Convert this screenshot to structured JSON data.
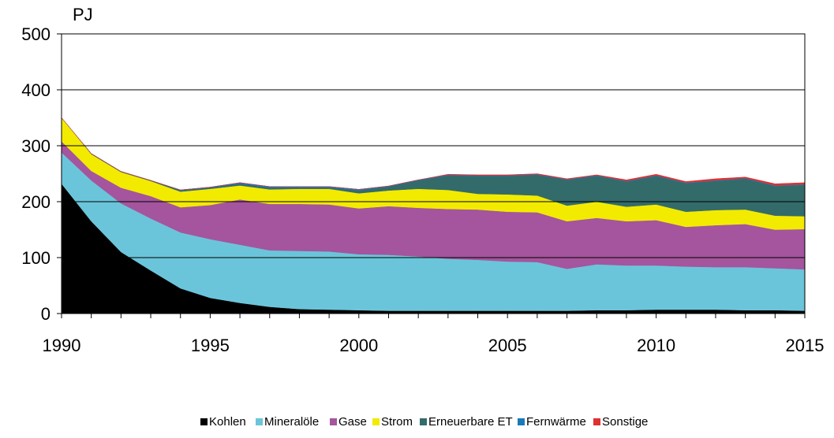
{
  "chart_data": {
    "type": "stacked-area",
    "y_label": "PJ",
    "x": [
      1990,
      1991,
      1992,
      1993,
      1994,
      1995,
      1996,
      1997,
      1998,
      1999,
      2000,
      2001,
      2002,
      2003,
      2004,
      2005,
      2006,
      2007,
      2008,
      2009,
      2010,
      2011,
      2012,
      2013,
      2014,
      2015
    ],
    "xlim": [
      1990,
      2015
    ],
    "xticks": [
      1990,
      1995,
      2000,
      2005,
      2010,
      2015
    ],
    "ylim": [
      0,
      500
    ],
    "yticks": [
      0,
      100,
      200,
      300,
      400,
      500
    ],
    "grid": true,
    "legend": "bottom",
    "series": [
      {
        "name": "Kohlen",
        "color": "#000000",
        "values": [
          232,
          165,
          110,
          77,
          45,
          28,
          19,
          12,
          8,
          7,
          6,
          5,
          5,
          5,
          5,
          5,
          5,
          5,
          6,
          6,
          7,
          7,
          7,
          6,
          6,
          5
        ]
      },
      {
        "name": "Mineralöle",
        "color": "#6bc5da",
        "values": [
          56,
          73,
          87,
          93,
          100,
          105,
          104,
          101,
          104,
          104,
          100,
          100,
          97,
          93,
          91,
          88,
          87,
          75,
          82,
          80,
          79,
          77,
          76,
          77,
          75,
          74
        ]
      },
      {
        "name": "Gase",
        "color": "#a4559d",
        "values": [
          20,
          17,
          28,
          40,
          45,
          61,
          81,
          83,
          84,
          84,
          82,
          87,
          87,
          89,
          90,
          89,
          89,
          85,
          83,
          79,
          81,
          71,
          75,
          77,
          69,
          72
        ]
      },
      {
        "name": "Strom",
        "color": "#f2eb00",
        "values": [
          42,
          30,
          28,
          27,
          28,
          29,
          25,
          26,
          27,
          28,
          27,
          28,
          34,
          34,
          28,
          31,
          30,
          28,
          29,
          26,
          28,
          27,
          27,
          26,
          25,
          23
        ]
      },
      {
        "name": "Erneuerbare ET",
        "color": "#336b6b",
        "values": [
          0,
          1,
          1,
          1,
          2,
          2,
          3,
          3,
          2,
          2,
          5,
          7,
          15,
          26,
          32,
          33,
          37,
          46,
          46,
          45,
          51,
          51,
          52,
          55,
          53,
          56
        ]
      },
      {
        "name": "Fernwärme",
        "color": "#1a7ab8",
        "values": [
          0,
          0,
          0,
          0,
          1,
          1,
          2,
          2,
          2,
          2,
          2,
          1,
          1,
          1,
          1,
          1,
          1,
          1,
          1,
          1,
          1,
          1,
          1,
          1,
          1,
          1
        ]
      },
      {
        "name": "Sonstige",
        "color": "#e03030",
        "values": [
          0,
          0,
          0,
          0,
          0,
          0,
          0,
          0,
          0,
          0,
          0,
          0,
          0,
          1,
          1,
          1,
          1,
          1,
          1,
          2,
          2,
          2,
          3,
          2,
          3,
          3
        ]
      }
    ]
  }
}
